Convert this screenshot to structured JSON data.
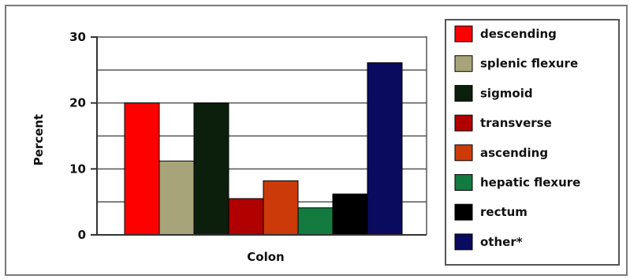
{
  "chart_data": {
    "type": "bar",
    "title": "",
    "xlabel": "Colon",
    "ylabel": "Percent",
    "ylim": [
      0,
      30
    ],
    "yticks": [
      "0",
      "10",
      "20",
      "30"
    ],
    "legend_position": "right",
    "grid": true,
    "series": [
      {
        "name": "descending",
        "value": 20,
        "color": "#ff0000"
      },
      {
        "name": "splenic flexure",
        "value": 11.2,
        "color": "#a8a47a"
      },
      {
        "name": "sigmoid",
        "value": 20,
        "color": "#0c1f0c"
      },
      {
        "name": "transverse",
        "value": 5.5,
        "color": "#b00000"
      },
      {
        "name": "ascending",
        "value": 8.2,
        "color": "#cc3a0a"
      },
      {
        "name": "hepatic flexure",
        "value": 4.1,
        "color": "#137a40"
      },
      {
        "name": "rectum",
        "value": 6.2,
        "color": "#000000"
      },
      {
        "name": "other*",
        "value": 26.1,
        "color": "#0a0a5e"
      }
    ]
  }
}
